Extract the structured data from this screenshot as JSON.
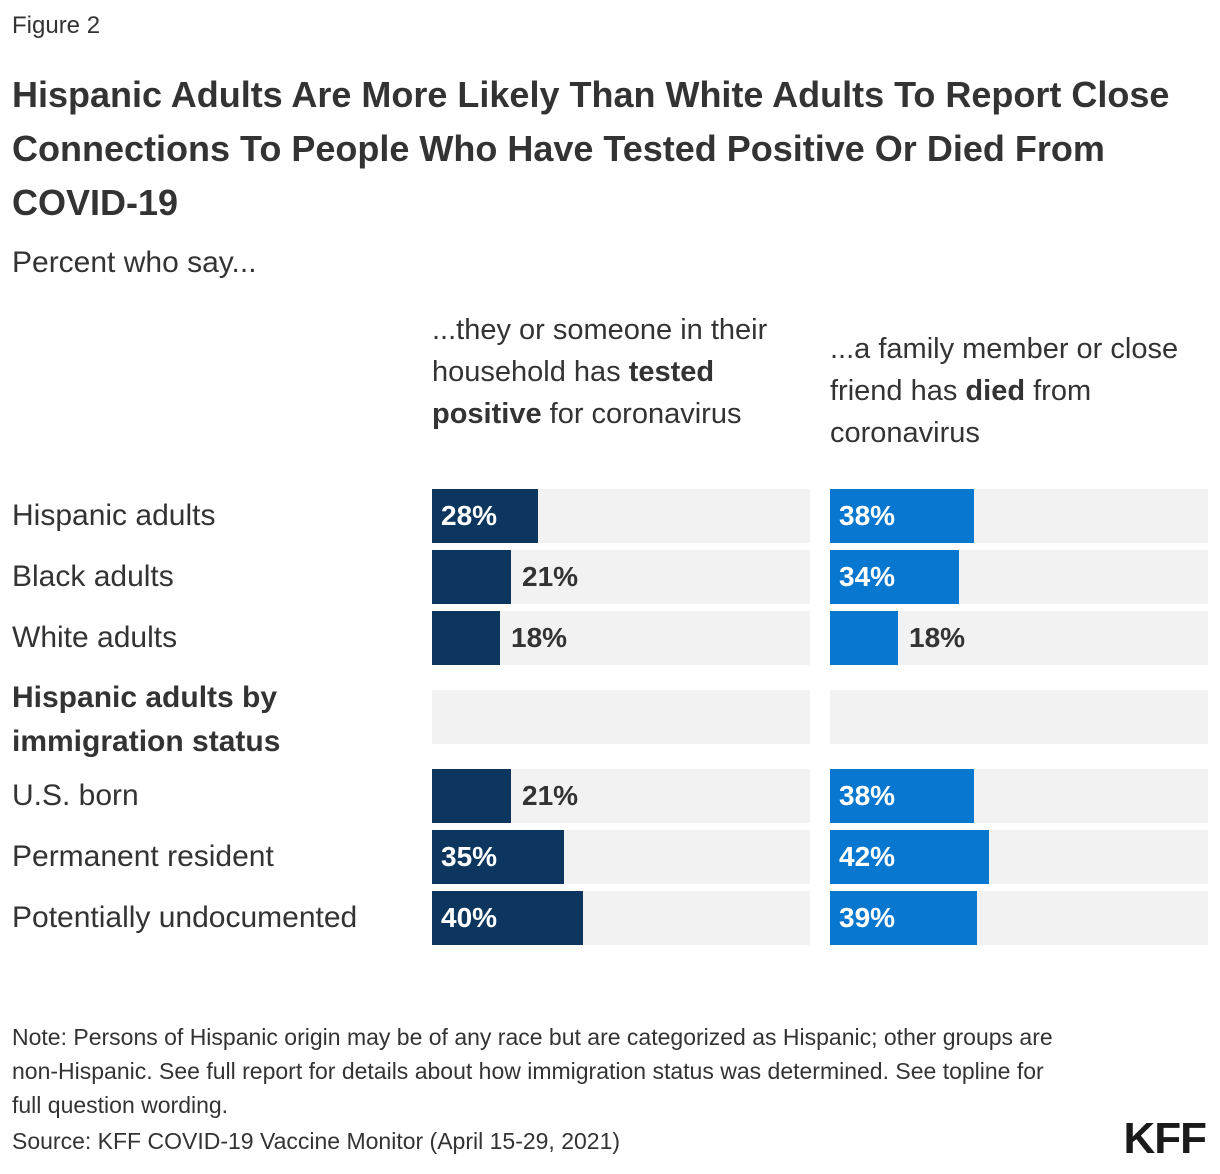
{
  "figure_label": "Figure 2",
  "title": "Hispanic Adults Are More Likely Than White Adults To Report Close Connections To People Who Have Tested Positive Or Died From COVID-19",
  "subtitle": "Percent who say...",
  "columns": [
    {
      "pre": "...they or someone in their household has ",
      "bold": "tested positive",
      "post": " for coronavirus"
    },
    {
      "pre": "...a family member or close friend has ",
      "bold": "died",
      "post": " from coronavirus"
    }
  ],
  "group_label": "Hispanic adults by immigration status",
  "note": "Note: Persons of Hispanic origin may be of any race but are categorized as Hispanic; other groups are non-Hispanic. See full report for details about how immigration status was determined. See topline for full question wording.",
  "source": "Source: KFF COVID-19 Vaccine Monitor (April 15-29, 2021)",
  "logo": "KFF",
  "colors": {
    "tested_positive": "#0c365e",
    "died": "#0877cf",
    "track": "#f2f2f2"
  },
  "chart_data": {
    "type": "bar",
    "orientation": "horizontal",
    "xlim": [
      0,
      100
    ],
    "categories": [
      "Hispanic adults",
      "Black adults",
      "White adults",
      "U.S. born",
      "Permanent resident",
      "Potentially undocumented"
    ],
    "series": [
      {
        "name": "...they or someone in their household has tested positive for coronavirus",
        "values": [
          28,
          21,
          18,
          21,
          35,
          40
        ],
        "labels": [
          "28%",
          "21%",
          "18%",
          "21%",
          "35%",
          "40%"
        ]
      },
      {
        "name": "...a family member or close friend has died from coronavirus",
        "values": [
          38,
          34,
          18,
          38,
          42,
          39
        ],
        "labels": [
          "38%",
          "34%",
          "18%",
          "38%",
          "42%",
          "39%"
        ]
      }
    ]
  }
}
